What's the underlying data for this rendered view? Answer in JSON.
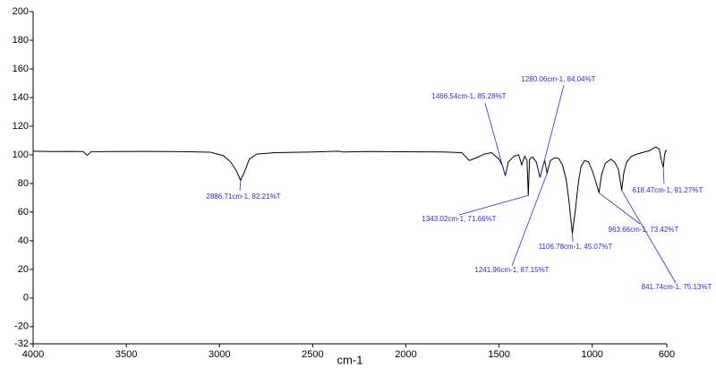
{
  "chart_data": {
    "type": "line",
    "x_label": "cm-1",
    "xlim": [
      4000,
      600
    ],
    "xticks": [
      4000,
      3500,
      3000,
      2500,
      2000,
      1500,
      1000,
      600
    ],
    "ylim": [
      -32,
      200
    ],
    "yticks": [
      -32,
      -20,
      0,
      20,
      40,
      60,
      80,
      100,
      120,
      140,
      160,
      180,
      200
    ],
    "x": [
      4000,
      3900,
      3800,
      3730,
      3710,
      3690,
      3600,
      3400,
      3200,
      3050,
      2980,
      2940,
      2910,
      2886.71,
      2860,
      2840,
      2800,
      2700,
      2500,
      2360,
      2340,
      2200,
      2000,
      1800,
      1700,
      1660,
      1620,
      1580,
      1540,
      1500,
      1480,
      1466.54,
      1450,
      1420,
      1395,
      1378,
      1362,
      1350,
      1343.02,
      1336,
      1320,
      1300,
      1280.06,
      1265,
      1255,
      1241.96,
      1225,
      1200,
      1180,
      1160,
      1140,
      1125,
      1106.78,
      1090,
      1075,
      1060,
      1040,
      1020,
      1000,
      985,
      963.66,
      950,
      930,
      900,
      880,
      860,
      841.74,
      830,
      815,
      790,
      760,
      720,
      690,
      660,
      640,
      630,
      618.47,
      612,
      605,
      600
    ],
    "series": [
      {
        "color": "#000000",
        "values": [
          102.5,
          102.3,
          102.4,
          102.2,
          99.6,
          102.1,
          102.3,
          102.4,
          102.2,
          101.8,
          99.5,
          95,
          89,
          82.21,
          90,
          97,
          100.5,
          101.5,
          102,
          102.5,
          102,
          102.3,
          102.1,
          102,
          101.5,
          96,
          98,
          100.5,
          101.5,
          97,
          92,
          85.28,
          95,
          99,
          100,
          93,
          99,
          96,
          71.66,
          97,
          98.5,
          95,
          84.04,
          92,
          96,
          87.15,
          96,
          98,
          97.5,
          93,
          83,
          68,
          45.07,
          62,
          80,
          92,
          96,
          95,
          89,
          83,
          73.42,
          86,
          94,
          97,
          95,
          90,
          75.13,
          88,
          95,
          99,
          100.5,
          102,
          103,
          105.5,
          104,
          97,
          91.27,
          100,
          103,
          102.5
        ]
      }
    ],
    "annotations": [
      {
        "x": 2886.71,
        "y": 82.21,
        "label": "2886.71cm-1, 82.21%T"
      },
      {
        "x": 1466.54,
        "y": 85.28,
        "label": "1466.54cm-1, 85.28%T"
      },
      {
        "x": 1280.06,
        "y": 84.04,
        "label": "1280.06cm-1, 84.04%T"
      },
      {
        "x": 1343.02,
        "y": 71.66,
        "label": "1343.02cm-1, 71.66%T"
      },
      {
        "x": 1241.96,
        "y": 87.15,
        "label": "1241.96cm-1, 87.15%T"
      },
      {
        "x": 1106.78,
        "y": 45.07,
        "label": "1106.78cm-1, 45.07%T"
      },
      {
        "x": 963.66,
        "y": 73.42,
        "label": "963.66cm-1, 73.42%T"
      },
      {
        "x": 841.74,
        "y": 75.13,
        "label": "841.74cm-1, 75.13%T"
      },
      {
        "x": 618.47,
        "y": 91.27,
        "label": "618.47cm-1, 91.27%T"
      }
    ]
  }
}
